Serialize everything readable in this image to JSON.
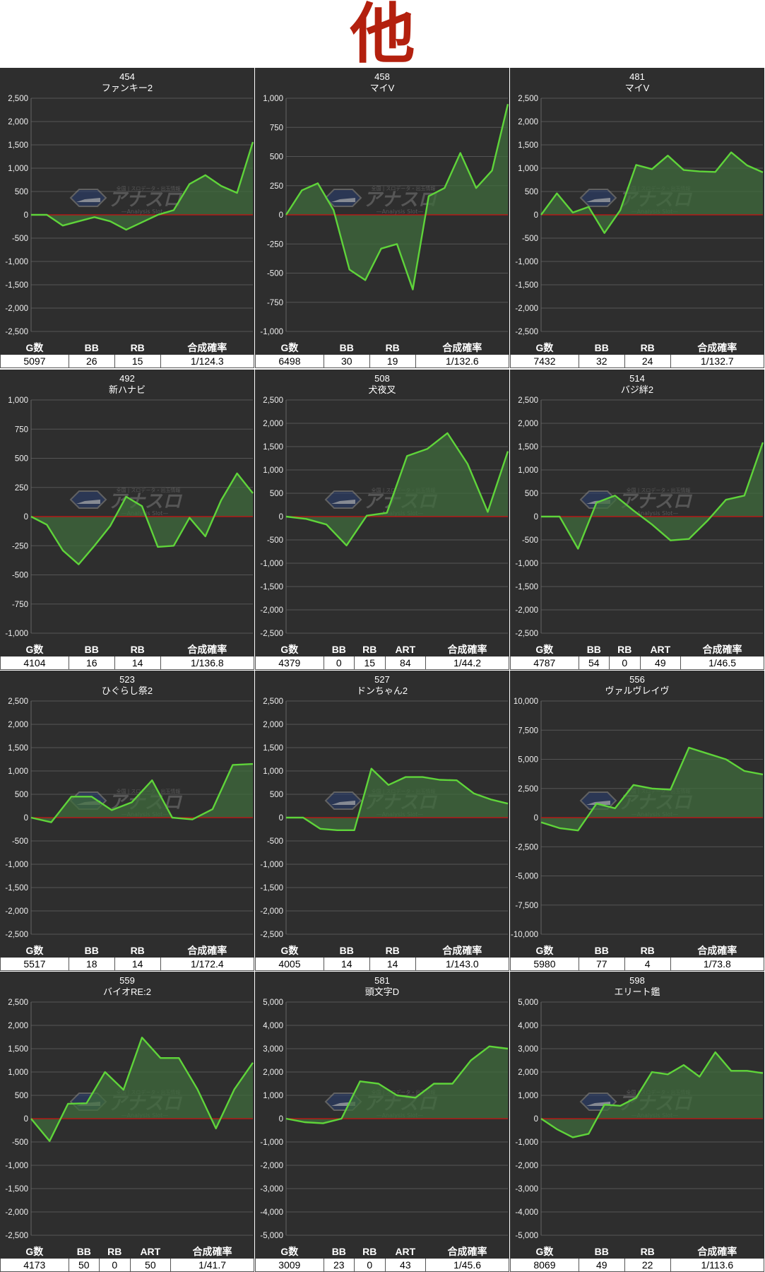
{
  "page_title": "他",
  "colors": {
    "background": "#2e2e2e",
    "line": "#5fd43a",
    "fill": "#3f6b3c",
    "zero_line": "#cc1111",
    "grid": "#555555",
    "title": "#b3200e"
  },
  "watermark": {
    "brand": "アナスロ",
    "sub": "—Analysis Slot—",
    "top": "全国 | スロデータ・出玉情報"
  },
  "charts": [
    {
      "number": "454",
      "name": "ファンキー2",
      "ylim": [
        -2500,
        2500
      ],
      "step": 500,
      "values": [
        0,
        0,
        -230,
        -140,
        -50,
        -140,
        -320,
        -160,
        0,
        100,
        660,
        850,
        620,
        470,
        1560
      ],
      "stats": {
        "headers": [
          "G数",
          "BB",
          "RB",
          "合成確率"
        ],
        "values": [
          "5097",
          "26",
          "15",
          "1/124.3"
        ]
      }
    },
    {
      "number": "458",
      "name": "マイV",
      "ylim": [
        -1000,
        1000
      ],
      "step": 250,
      "values": [
        0,
        210,
        270,
        40,
        -470,
        -560,
        -290,
        -250,
        -640,
        160,
        230,
        530,
        230,
        380,
        950
      ],
      "stats": {
        "headers": [
          "G数",
          "BB",
          "RB",
          "合成確率"
        ],
        "values": [
          "6498",
          "30",
          "19",
          "1/132.6"
        ]
      }
    },
    {
      "number": "481",
      "name": "マイV",
      "ylim": [
        -2500,
        2500
      ],
      "step": 500,
      "values": [
        0,
        460,
        50,
        170,
        -390,
        100,
        1070,
        980,
        1270,
        960,
        930,
        920,
        1340,
        1060,
        910
      ],
      "stats": {
        "headers": [
          "G数",
          "BB",
          "RB",
          "合成確率"
        ],
        "values": [
          "7432",
          "32",
          "24",
          "1/132.7"
        ]
      }
    },
    {
      "number": "492",
      "name": "新ハナビ",
      "ylim": [
        -1000,
        1000
      ],
      "step": 250,
      "values": [
        0,
        -70,
        -290,
        -410,
        -250,
        -80,
        170,
        90,
        -260,
        -250,
        -10,
        -170,
        140,
        370,
        200
      ],
      "stats": {
        "headers": [
          "G数",
          "BB",
          "RB",
          "合成確率"
        ],
        "values": [
          "4104",
          "16",
          "14",
          "1/136.8"
        ]
      }
    },
    {
      "number": "508",
      "name": "犬夜叉",
      "ylim": [
        -2500,
        2500
      ],
      "step": 500,
      "values": [
        0,
        -50,
        -170,
        -620,
        20,
        80,
        1300,
        1450,
        1790,
        1130,
        100,
        1400
      ],
      "stats": {
        "headers": [
          "G数",
          "BB",
          "RB",
          "ART",
          "合成確率"
        ],
        "values": [
          "4379",
          "0",
          "15",
          "84",
          "1/44.2"
        ]
      }
    },
    {
      "number": "514",
      "name": "バジ絆2",
      "ylim": [
        -2500,
        2500
      ],
      "step": 500,
      "values": [
        0,
        0,
        -690,
        300,
        450,
        130,
        -170,
        -510,
        -480,
        -90,
        360,
        450,
        1590
      ],
      "stats": {
        "headers": [
          "G数",
          "BB",
          "RB",
          "ART",
          "合成確率"
        ],
        "values": [
          "4787",
          "54",
          "0",
          "49",
          "1/46.5"
        ]
      }
    },
    {
      "number": "523",
      "name": "ひぐらし祭2",
      "ylim": [
        -2500,
        2500
      ],
      "step": 500,
      "values": [
        0,
        -100,
        450,
        450,
        160,
        330,
        800,
        0,
        -40,
        180,
        1130,
        1150
      ],
      "stats": {
        "headers": [
          "G数",
          "BB",
          "RB",
          "合成確率"
        ],
        "values": [
          "5517",
          "18",
          "14",
          "1/172.4"
        ]
      }
    },
    {
      "number": "527",
      "name": "ドンちゃん2",
      "ylim": [
        -2500,
        2500
      ],
      "step": 500,
      "values": [
        0,
        0,
        -240,
        -270,
        -270,
        1050,
        700,
        870,
        870,
        810,
        800,
        520,
        390,
        300
      ],
      "stats": {
        "headers": [
          "G数",
          "BB",
          "RB",
          "合成確率"
        ],
        "values": [
          "4005",
          "14",
          "14",
          "1/143.0"
        ]
      }
    },
    {
      "number": "556",
      "name": "ヴァルヴレイヴ",
      "ylim": [
        -10000,
        10000
      ],
      "step": 2500,
      "values": [
        -400,
        -900,
        -1100,
        1200,
        800,
        2800,
        2500,
        2400,
        6000,
        5500,
        5000,
        4000,
        3700
      ],
      "stats": {
        "headers": [
          "G数",
          "BB",
          "RB",
          "合成確率"
        ],
        "values": [
          "5980",
          "77",
          "4",
          "1/73.8"
        ]
      }
    },
    {
      "number": "559",
      "name": "バイオRE:2",
      "ylim": [
        -2500,
        2500
      ],
      "step": 500,
      "values": [
        0,
        -480,
        320,
        330,
        1000,
        620,
        1740,
        1300,
        1300,
        630,
        -210,
        630,
        1200
      ],
      "stats": {
        "headers": [
          "G数",
          "BB",
          "RB",
          "ART",
          "合成確率"
        ],
        "values": [
          "4173",
          "50",
          "0",
          "50",
          "1/41.7"
        ]
      }
    },
    {
      "number": "581",
      "name": "頭文字D",
      "ylim": [
        -5000,
        5000
      ],
      "step": 1000,
      "values": [
        0,
        -150,
        -200,
        0,
        1600,
        1500,
        1000,
        900,
        1500,
        1500,
        2500,
        3100,
        3000
      ],
      "stats": {
        "headers": [
          "G数",
          "BB",
          "RB",
          "ART",
          "合成確率"
        ],
        "values": [
          "3009",
          "23",
          "0",
          "43",
          "1/45.6"
        ]
      }
    },
    {
      "number": "598",
      "name": "エリート鑑",
      "ylim": [
        -5000,
        5000
      ],
      "step": 1000,
      "values": [
        0,
        -450,
        -800,
        -650,
        600,
        550,
        900,
        2000,
        1900,
        2300,
        1800,
        2850,
        2050,
        2050,
        1950
      ],
      "stats": {
        "headers": [
          "G数",
          "BB",
          "RB",
          "合成確率"
        ],
        "values": [
          "8069",
          "49",
          "22",
          "1/113.6"
        ]
      }
    }
  ]
}
